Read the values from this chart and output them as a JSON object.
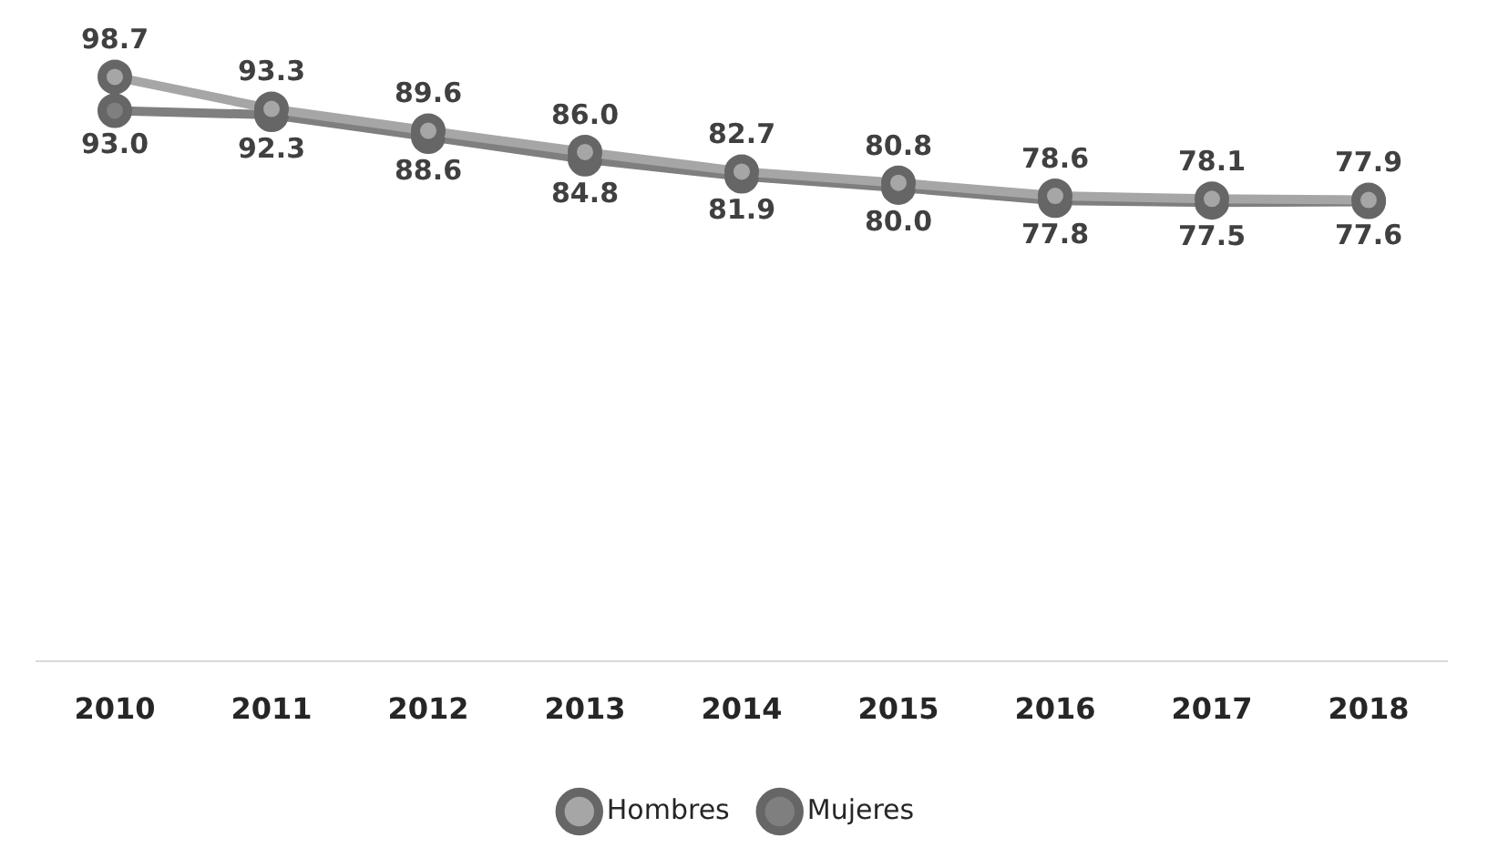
{
  "chart_data": {
    "type": "line",
    "categories": [
      "2010",
      "2011",
      "2012",
      "2013",
      "2014",
      "2015",
      "2016",
      "2017",
      "2018"
    ],
    "series": [
      {
        "name": "Hombres",
        "color": "#a6a6a6",
        "values": [
          98.7,
          93.3,
          89.6,
          86.0,
          82.7,
          80.8,
          78.6,
          78.1,
          77.9
        ],
        "value_labels": [
          "98.7",
          "93.3",
          "89.6",
          "86.0",
          "82.7",
          "80.8",
          "78.6",
          "78.1",
          "77.9"
        ]
      },
      {
        "name": "Mujeres",
        "color": "#7f7f7f",
        "values": [
          93.0,
          92.3,
          88.6,
          84.8,
          81.9,
          80.0,
          77.8,
          77.5,
          77.6
        ],
        "value_labels": [
          "93.0",
          "92.3",
          "88.6",
          "84.8",
          "81.9",
          "80.0",
          "77.8",
          "77.5",
          "77.6"
        ]
      }
    ],
    "marker": "circle",
    "legend": "bottom",
    "grid": false,
    "tick_labels": "x"
  }
}
